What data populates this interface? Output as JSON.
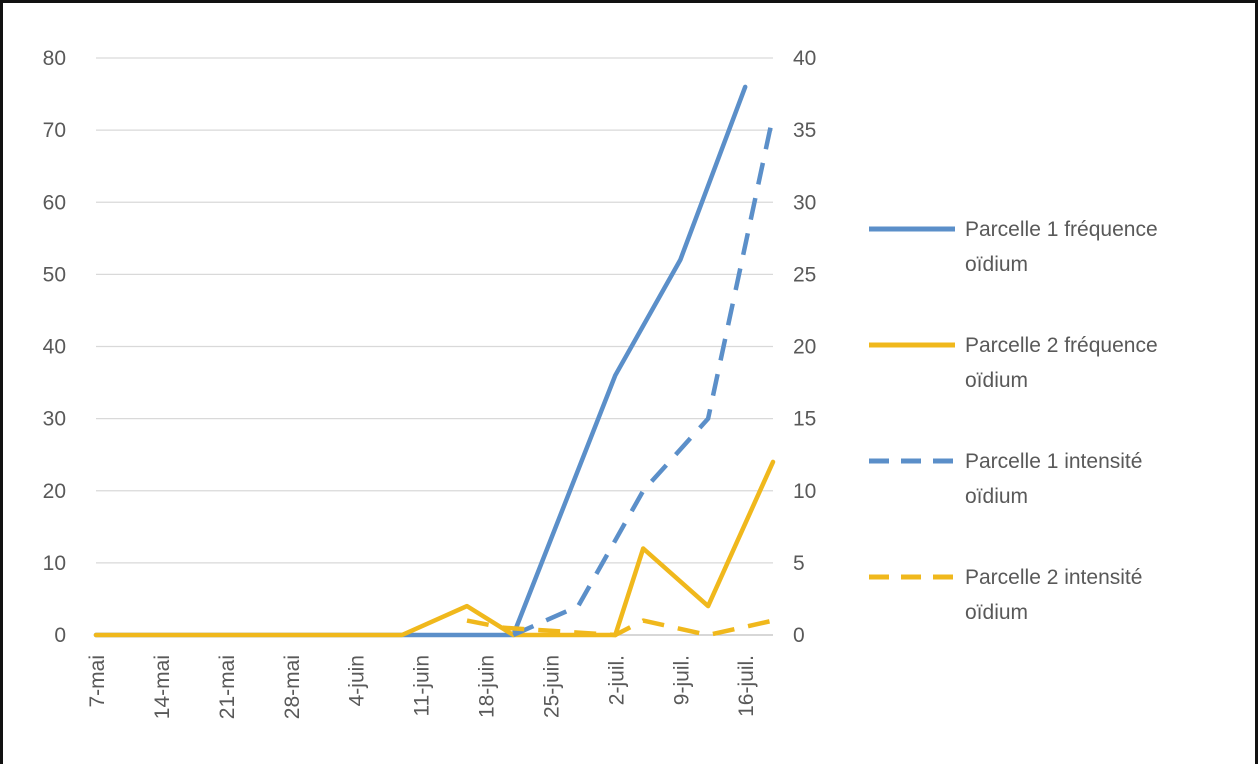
{
  "chart_data": {
    "type": "line",
    "title": "",
    "xlabel": "",
    "ylabel": "",
    "ylabel_right": "",
    "categories": [
      "7-mai",
      "14-mai",
      "21-mai",
      "28-mai",
      "4-juin",
      "11-juin",
      "18-juin",
      "25-juin",
      "2-juil.",
      "9-juil.",
      "16-juil."
    ],
    "x": [
      0,
      7,
      14,
      21,
      28,
      35,
      42,
      49,
      56,
      63,
      70
    ],
    "x_tick_labels": [
      "7-mai",
      "14-mai",
      "21-mai",
      "28-mai",
      "4-juin",
      "11-juin",
      "18-juin",
      "25-juin",
      "2-juil.",
      "9-juil.",
      "16-juil."
    ],
    "ylim": [
      0,
      80
    ],
    "ylim_right": [
      0,
      40
    ],
    "y_ticks": [
      0,
      10,
      20,
      30,
      40,
      50,
      60,
      70,
      80
    ],
    "y_ticks_right": [
      0,
      5,
      10,
      15,
      20,
      25,
      30,
      35,
      40
    ],
    "grid": true,
    "legend_position": "right",
    "series": [
      {
        "name": "Parcelle 1 fréquence oïdium",
        "name_lines": [
          "Parcelle 1 fréquence",
          "oïdium"
        ],
        "axis": "left",
        "color": "#5B8FC9",
        "dash": "solid",
        "points": [
          [
            0,
            0
          ],
          [
            35,
            0
          ],
          [
            42,
            0
          ],
          [
            45,
            0
          ],
          [
            56,
            36
          ],
          [
            63,
            52
          ],
          [
            70,
            76
          ]
        ]
      },
      {
        "name": "Parcelle 2 fréquence oïdium",
        "name_lines": [
          "Parcelle 2 fréquence",
          "oïdium"
        ],
        "axis": "left",
        "color": "#F0B81C",
        "dash": "solid",
        "points": [
          [
            0,
            0
          ],
          [
            33,
            0
          ],
          [
            40,
            4
          ],
          [
            45,
            0
          ],
          [
            52,
            0
          ],
          [
            56,
            0
          ],
          [
            59,
            12
          ],
          [
            66,
            4
          ],
          [
            73,
            24
          ]
        ]
      },
      {
        "name": "Parcelle 1 intensité oïdium",
        "name_lines": [
          "Parcelle 1 intensité",
          "oïdium"
        ],
        "axis": "right",
        "color": "#5B8FC9",
        "dash": "dashed",
        "points": [
          [
            45,
            0
          ],
          [
            52,
            2
          ],
          [
            59,
            10
          ],
          [
            66,
            15
          ],
          [
            73,
            36
          ]
        ]
      },
      {
        "name": "Parcelle 2 intensité oïdium",
        "name_lines": [
          "Parcelle 2 intensité",
          "oïdium"
        ],
        "axis": "right",
        "color": "#F0B81C",
        "dash": "dashed",
        "points": [
          [
            40,
            1
          ],
          [
            44,
            0.5
          ],
          [
            56,
            0
          ],
          [
            59,
            1
          ],
          [
            66,
            0
          ],
          [
            73,
            1
          ]
        ]
      }
    ]
  }
}
